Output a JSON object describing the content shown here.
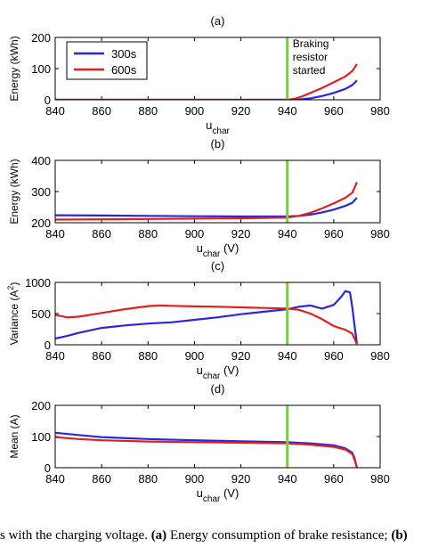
{
  "colors": {
    "series_300s": "#2727e0",
    "series_600s": "#e02020",
    "marker_line": "#66dd22",
    "axis": "#000000"
  },
  "chart_data": [
    {
      "type": "line",
      "panel_label": "(a)",
      "xlabel": "u",
      "xlabel_sub": "char",
      "xlabel_unit": "",
      "ylabel": "Energy (kWh)",
      "xlim": [
        840,
        980
      ],
      "ylim": [
        0,
        200
      ],
      "xticks": [
        "840",
        "860",
        "880",
        "900",
        "920",
        "940",
        "960",
        "980"
      ],
      "yticks": [
        "0",
        "100",
        "200"
      ],
      "legend": {
        "position": "top-left",
        "entries": [
          "300s",
          "600s"
        ]
      },
      "annotation": {
        "lines": [
          "Braking",
          "resistor",
          "started"
        ]
      },
      "vline_x": 940,
      "series": [
        {
          "name": "300s",
          "x": [
            840,
            900,
            940,
            945,
            950,
            955,
            960,
            965,
            968,
            970
          ],
          "y": [
            0,
            0,
            0,
            1,
            5,
            12,
            22,
            35,
            47,
            62
          ]
        },
        {
          "name": "600s",
          "x": [
            840,
            900,
            940,
            943,
            946,
            950,
            955,
            960,
            965,
            968,
            970
          ],
          "y": [
            0,
            0,
            0,
            3,
            10,
            22,
            38,
            56,
            75,
            92,
            115
          ]
        }
      ]
    },
    {
      "type": "line",
      "panel_label": "(b)",
      "xlabel": "u",
      "xlabel_sub": "char",
      "xlabel_unit": " (V)",
      "ylabel": "Energy (kWh)",
      "xlim": [
        840,
        980
      ],
      "ylim": [
        200,
        400
      ],
      "xticks": [
        "840",
        "860",
        "880",
        "900",
        "920",
        "940",
        "960",
        "980"
      ],
      "yticks": [
        "200",
        "300",
        "400"
      ],
      "vline_x": 940,
      "series": [
        {
          "name": "300s",
          "x": [
            840,
            860,
            880,
            900,
            920,
            940,
            945,
            950,
            955,
            960,
            965,
            968,
            970
          ],
          "y": [
            224,
            223,
            222,
            221,
            220,
            220,
            222,
            226,
            233,
            242,
            254,
            264,
            280
          ]
        },
        {
          "name": "600s",
          "x": [
            840,
            860,
            880,
            900,
            920,
            940,
            945,
            950,
            955,
            960,
            965,
            968,
            970
          ],
          "y": [
            210,
            211,
            212,
            213,
            214,
            217,
            222,
            232,
            246,
            262,
            280,
            296,
            330
          ]
        }
      ]
    },
    {
      "type": "line",
      "panel_label": "(c)",
      "xlabel": "u",
      "xlabel_sub": "char",
      "xlabel_unit": " (V)",
      "ylabel": "Variance (A",
      "ylabel_sup": "2",
      "ylabel_end": ")",
      "xlim": [
        840,
        980
      ],
      "ylim": [
        0,
        1000
      ],
      "xticks": [
        "840",
        "860",
        "880",
        "900",
        "920",
        "940",
        "960",
        "980"
      ],
      "yticks": [
        "0",
        "500",
        "1000"
      ],
      "vline_x": 940,
      "series": [
        {
          "name": "300s",
          "x": [
            840,
            845,
            850,
            860,
            870,
            880,
            890,
            900,
            910,
            920,
            930,
            940,
            945,
            950,
            955,
            960,
            963,
            965,
            967,
            968,
            969,
            970
          ],
          "y": [
            100,
            140,
            190,
            270,
            310,
            340,
            360,
            400,
            440,
            490,
            530,
            570,
            610,
            630,
            580,
            640,
            760,
            860,
            840,
            600,
            300,
            20
          ]
        },
        {
          "name": "600s",
          "x": [
            840,
            845,
            850,
            860,
            870,
            880,
            885,
            890,
            900,
            910,
            920,
            930,
            940,
            945,
            950,
            955,
            960,
            965,
            968,
            970
          ],
          "y": [
            480,
            440,
            450,
            510,
            570,
            620,
            630,
            625,
            615,
            610,
            600,
            590,
            580,
            560,
            500,
            410,
            300,
            240,
            180,
            10
          ]
        }
      ]
    },
    {
      "type": "line",
      "panel_label": "(d)",
      "xlabel": "u",
      "xlabel_sub": "char",
      "xlabel_unit": " (V)",
      "ylabel": "Mean (A)",
      "xlim": [
        840,
        980
      ],
      "ylim": [
        0,
        200
      ],
      "xticks": [
        "840",
        "860",
        "880",
        "900",
        "920",
        "940",
        "960",
        "980"
      ],
      "yticks": [
        "0",
        "100",
        "200"
      ],
      "vline_x": 940,
      "series": [
        {
          "name": "300s",
          "x": [
            840,
            850,
            860,
            880,
            900,
            920,
            940,
            950,
            960,
            965,
            968,
            969,
            970
          ],
          "y": [
            112,
            105,
            98,
            92,
            88,
            85,
            82,
            78,
            72,
            62,
            48,
            30,
            0
          ]
        },
        {
          "name": "600s",
          "x": [
            840,
            850,
            860,
            880,
            900,
            920,
            940,
            950,
            960,
            965,
            968,
            969,
            970
          ],
          "y": [
            98,
            92,
            88,
            84,
            82,
            80,
            78,
            74,
            67,
            58,
            44,
            25,
            0
          ]
        }
      ]
    }
  ],
  "caption": {
    "pre": "s with the charging voltage. ",
    "label_a": "(a)",
    "text_a": " Energy consumption of brake resistance; ",
    "label_b": "(b)"
  }
}
